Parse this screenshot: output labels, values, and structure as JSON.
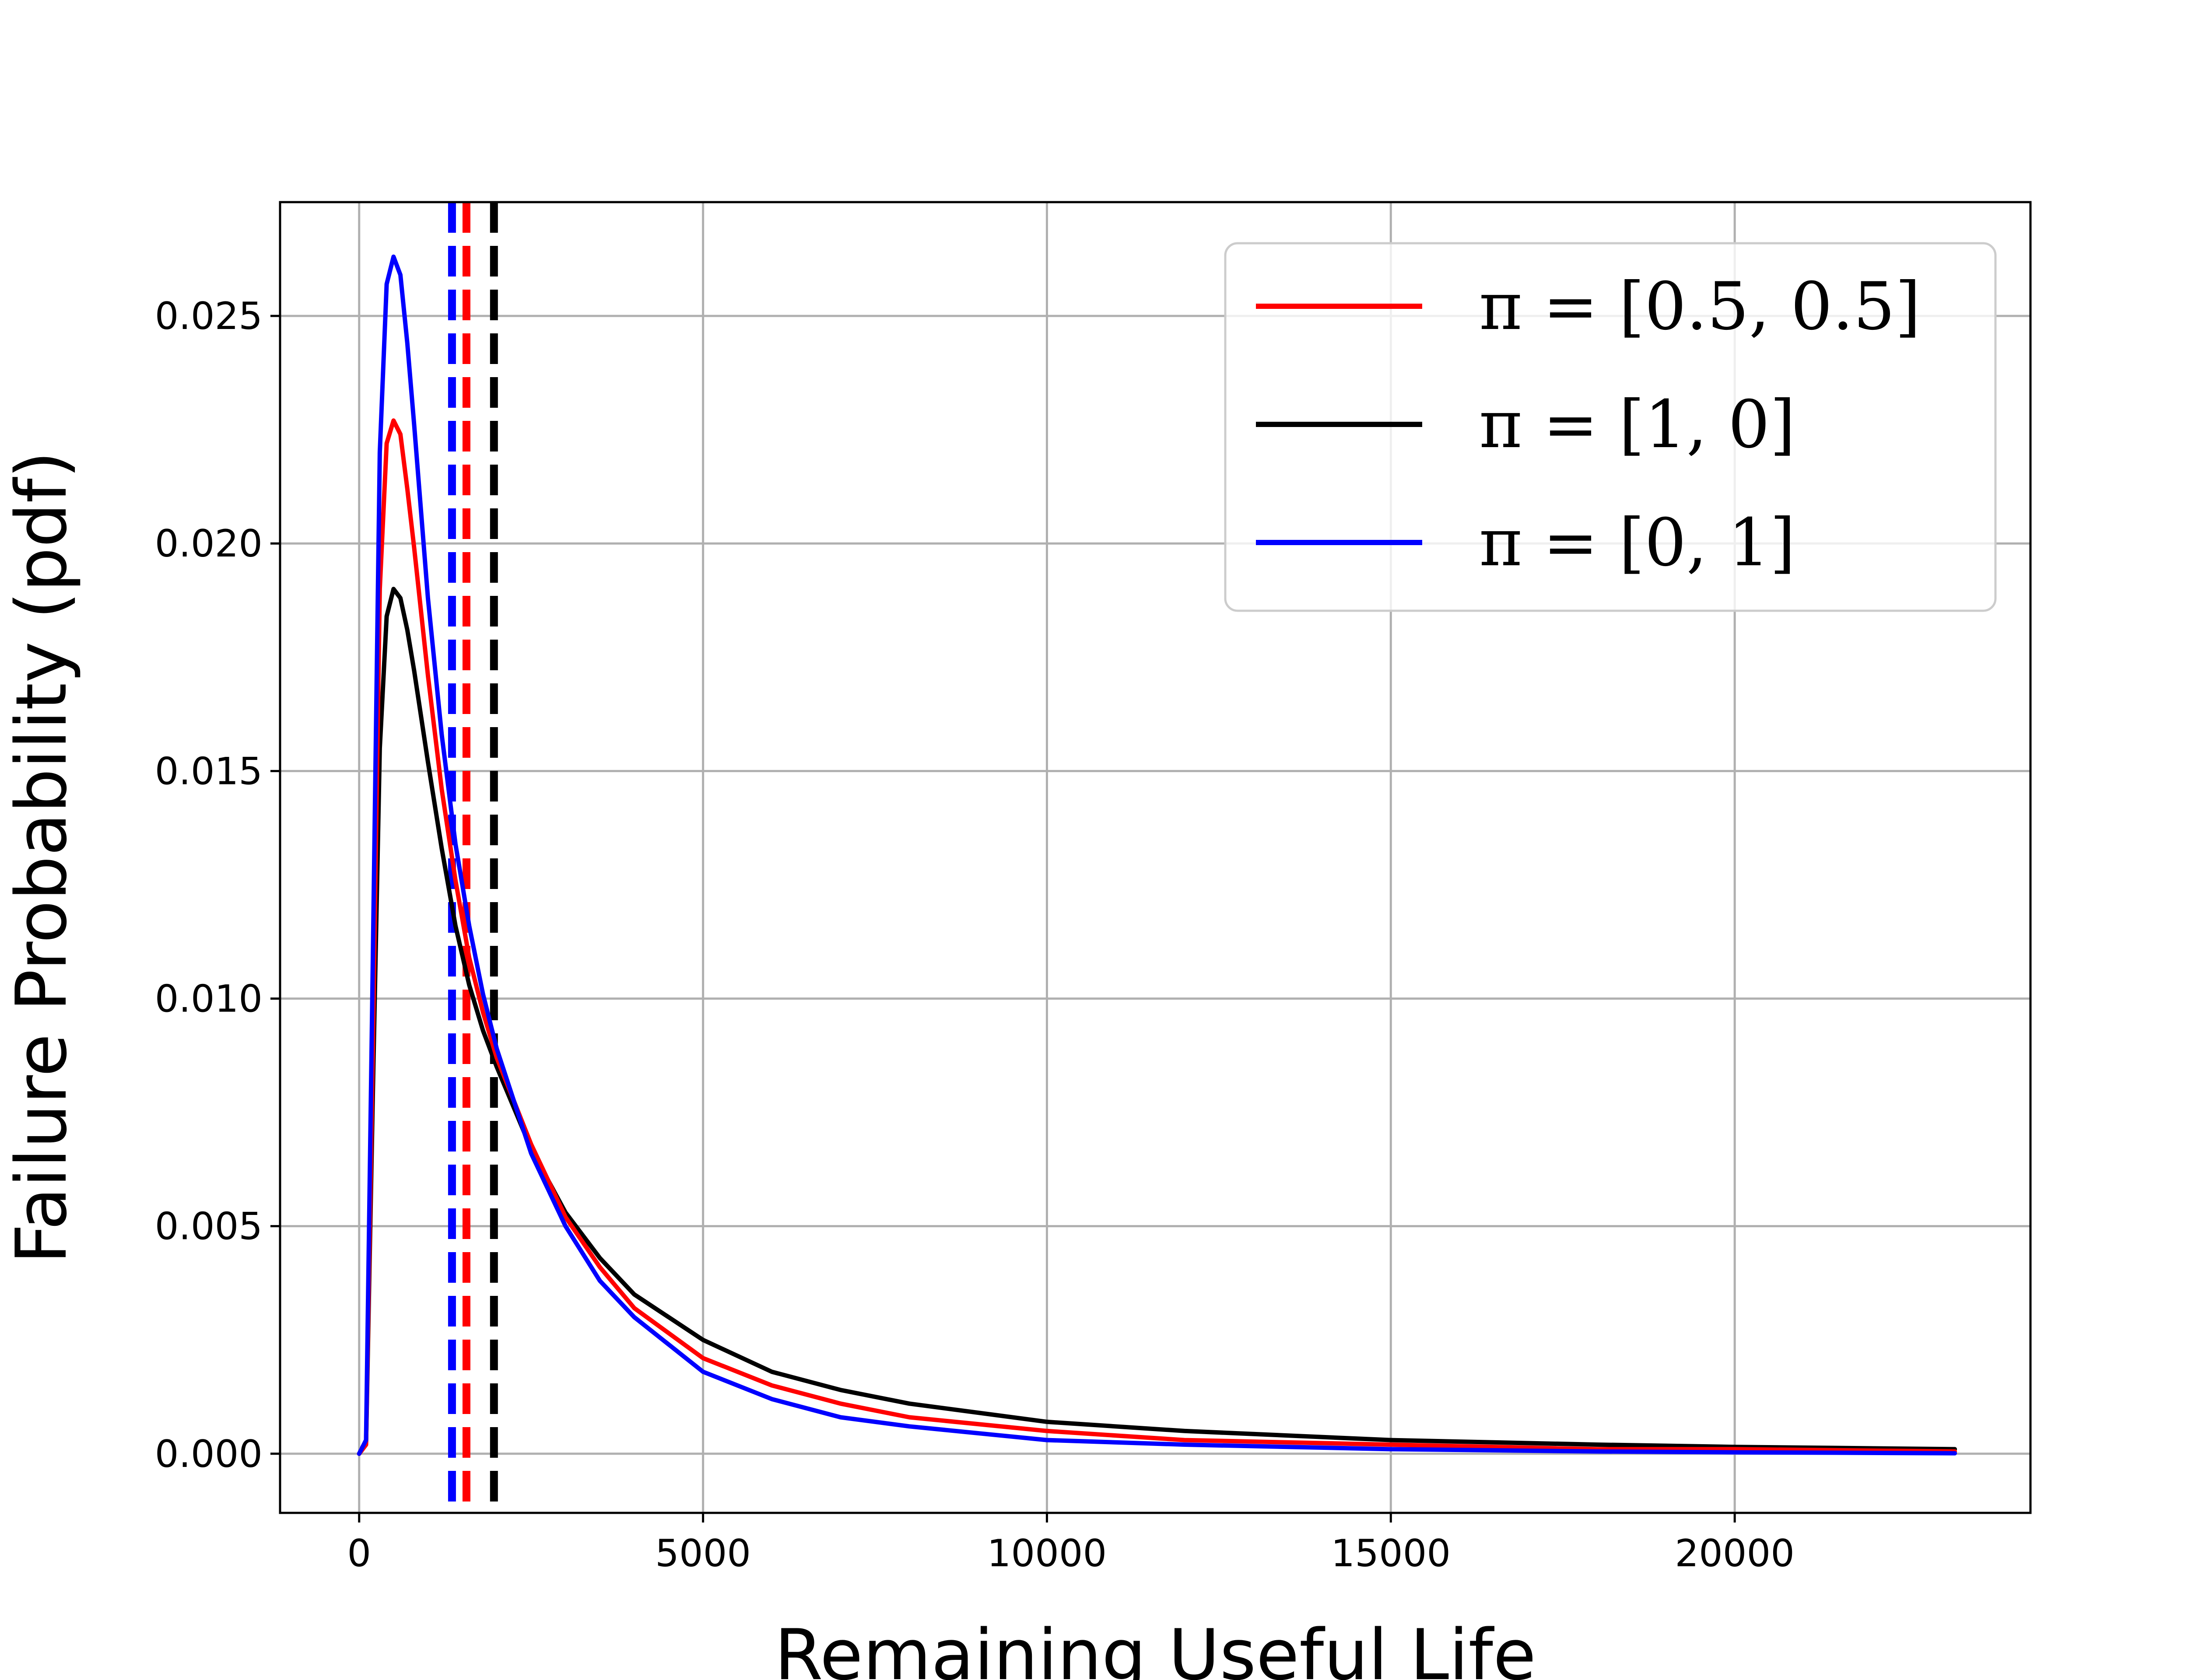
{
  "chart_data": {
    "type": "line",
    "xlabel": "Remaining Useful Life",
    "ylabel": "Failure Probability (pdf)",
    "xlim": [
      -1150,
      24300
    ],
    "ylim": [
      -0.0013,
      0.0275
    ],
    "x_ticks": [
      0,
      5000,
      10000,
      15000,
      20000
    ],
    "x_tick_labels": [
      "0",
      "5000",
      "10000",
      "15000",
      "20000"
    ],
    "y_ticks": [
      0.0,
      0.005,
      0.01,
      0.015,
      0.02,
      0.025
    ],
    "y_tick_labels": [
      "0.000",
      "0.005",
      "0.010",
      "0.015",
      "0.020",
      "0.025"
    ],
    "grid": true,
    "legend_position": "top-right",
    "series": [
      {
        "name": "π = [0.5, 0.5]",
        "color": "#ff0000",
        "x": [
          0,
          100,
          200,
          300,
          400,
          500,
          600,
          700,
          800,
          900,
          1000,
          1200,
          1400,
          1600,
          1800,
          2000,
          2500,
          3000,
          3500,
          4000,
          5000,
          6000,
          7000,
          8000,
          10000,
          12000,
          15000,
          18000,
          20000,
          23200
        ],
        "y": [
          0.0,
          0.0002,
          0.009,
          0.019,
          0.0222,
          0.0227,
          0.0224,
          0.0212,
          0.0199,
          0.0185,
          0.0171,
          0.0146,
          0.0126,
          0.0109,
          0.0097,
          0.0087,
          0.0068,
          0.0052,
          0.0041,
          0.0032,
          0.0021,
          0.0015,
          0.0011,
          0.0008,
          0.0005,
          0.0003,
          0.0002,
          0.0001,
          0.0001,
          5e-05
        ]
      },
      {
        "name": "π = [1, 0]",
        "color": "#000000",
        "x": [
          0,
          100,
          200,
          300,
          400,
          500,
          600,
          700,
          800,
          900,
          1000,
          1200,
          1400,
          1600,
          1800,
          2000,
          2500,
          3000,
          3500,
          4000,
          5000,
          6000,
          7000,
          8000,
          10000,
          12000,
          15000,
          18000,
          20000,
          23200
        ],
        "y": [
          0.0,
          0.0002,
          0.008,
          0.0155,
          0.0184,
          0.019,
          0.0188,
          0.0181,
          0.0172,
          0.0162,
          0.0152,
          0.0133,
          0.0116,
          0.0103,
          0.0093,
          0.0085,
          0.0067,
          0.0053,
          0.0043,
          0.0035,
          0.0025,
          0.0018,
          0.0014,
          0.0011,
          0.0007,
          0.0005,
          0.0003,
          0.0002,
          0.00015,
          0.0001
        ]
      },
      {
        "name": "π = [0, 1]",
        "color": "#0000ff",
        "x": [
          0,
          100,
          200,
          300,
          400,
          500,
          600,
          700,
          800,
          900,
          1000,
          1200,
          1400,
          1600,
          1800,
          2000,
          2500,
          3000,
          3500,
          4000,
          5000,
          6000,
          7000,
          8000,
          10000,
          12000,
          15000,
          18000,
          20000,
          23200
        ],
        "y": [
          0.0,
          0.0003,
          0.011,
          0.022,
          0.0257,
          0.0263,
          0.0259,
          0.0244,
          0.0226,
          0.0207,
          0.0188,
          0.0158,
          0.0134,
          0.0116,
          0.0101,
          0.0089,
          0.0066,
          0.005,
          0.0038,
          0.003,
          0.0018,
          0.0012,
          0.0008,
          0.0006,
          0.0003,
          0.0002,
          0.0001,
          5e-05,
          3e-05,
          1e-05
        ]
      }
    ],
    "vertical_lines": [
      {
        "x": 1350,
        "color": "#0000ff",
        "style": "dashed"
      },
      {
        "x": 1560,
        "color": "#ff0000",
        "style": "dashed"
      },
      {
        "x": 1960,
        "color": "#000000",
        "style": "dashed"
      }
    ]
  }
}
